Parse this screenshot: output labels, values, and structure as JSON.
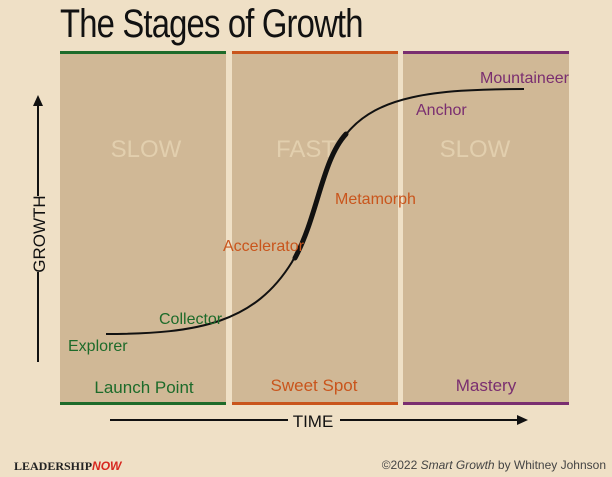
{
  "title": "The Stages of Growth",
  "colors": {
    "green": "#1d6b2a",
    "orange": "#c9551c",
    "purple": "#7a2e70",
    "panel": "#d0b896",
    "background": "#efe0c6",
    "curve": "#111111"
  },
  "axes": {
    "y_label": "GROWTH",
    "x_label": "TIME"
  },
  "phases": [
    {
      "label": "Launch Point",
      "speed": "SLOW",
      "color": "#1d6b2a"
    },
    {
      "label": "Sweet Spot",
      "speed": "FAST",
      "color": "#c9551c"
    },
    {
      "label": "Mastery",
      "speed": "SLOW",
      "color": "#7a2e70"
    }
  ],
  "stages": [
    {
      "label": "Explorer",
      "color": "#1d6b2a"
    },
    {
      "label": "Collector",
      "color": "#1d6b2a"
    },
    {
      "label": "Accelerator",
      "color": "#c9551c"
    },
    {
      "label": "Metamorph",
      "color": "#c9551c"
    },
    {
      "label": "Anchor",
      "color": "#7a2e70"
    },
    {
      "label": "Mountaineer",
      "color": "#7a2e70"
    }
  ],
  "footer": {
    "logo_part1": "LEADERSHIP",
    "logo_part2": "NOW",
    "copyright": "©2022 ",
    "book": "Smart Growth",
    "author": " by Whitney Johnson"
  }
}
